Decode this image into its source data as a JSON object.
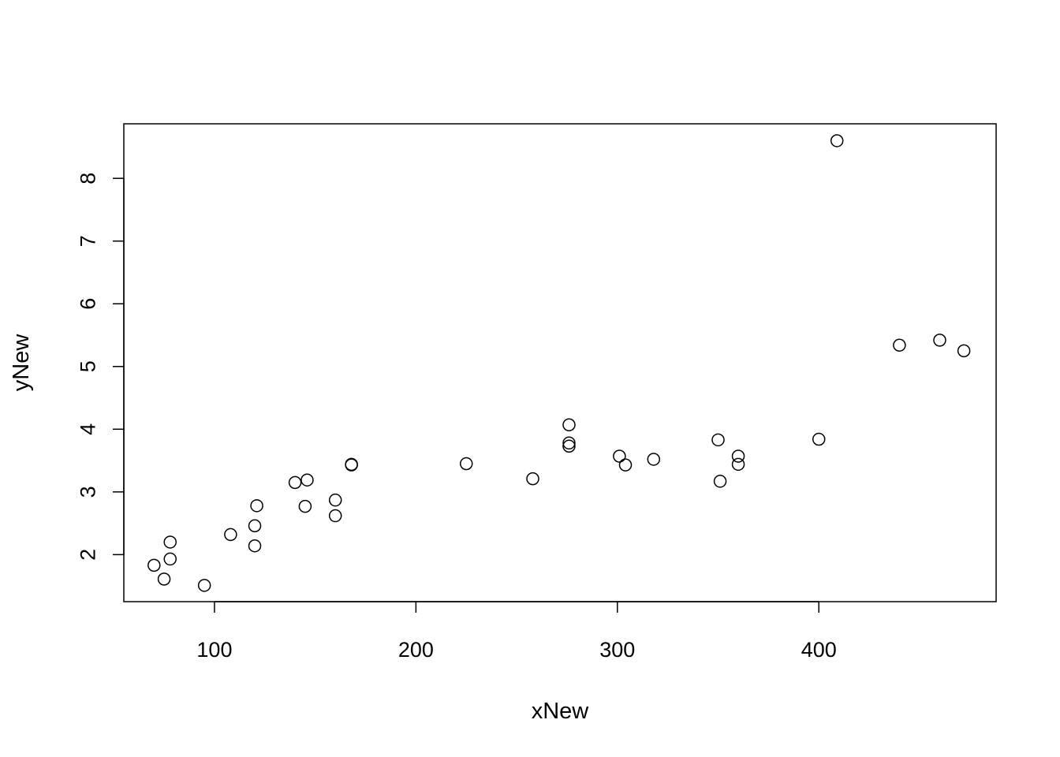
{
  "chart_data": {
    "type": "scatter",
    "title": "",
    "xlabel": "xNew",
    "ylabel": "yNew",
    "xlim": [
      55,
      488
    ],
    "ylim": [
      1.25,
      8.87
    ],
    "xticks": [
      100,
      200,
      300,
      400
    ],
    "yticks": [
      2,
      3,
      4,
      5,
      6,
      7,
      8
    ],
    "xtick_labels": [
      "100",
      "200",
      "300",
      "400"
    ],
    "ytick_labels": [
      "2",
      "3",
      "4",
      "5",
      "6",
      "7",
      "8"
    ],
    "grid": false,
    "legend": "none",
    "marker": "open-circle",
    "point_color": "#000000",
    "points": [
      {
        "x": 70,
        "y": 1.83
      },
      {
        "x": 75,
        "y": 1.61
      },
      {
        "x": 78,
        "y": 1.93
      },
      {
        "x": 78,
        "y": 2.2
      },
      {
        "x": 95,
        "y": 1.51
      },
      {
        "x": 108,
        "y": 2.32
      },
      {
        "x": 120,
        "y": 2.46
      },
      {
        "x": 120,
        "y": 2.14
      },
      {
        "x": 121,
        "y": 2.78
      },
      {
        "x": 140,
        "y": 3.15
      },
      {
        "x": 145,
        "y": 2.77
      },
      {
        "x": 146,
        "y": 3.19
      },
      {
        "x": 160,
        "y": 2.87
      },
      {
        "x": 160,
        "y": 2.62
      },
      {
        "x": 168,
        "y": 3.44
      },
      {
        "x": 168,
        "y": 3.43
      },
      {
        "x": 225,
        "y": 3.45
      },
      {
        "x": 258,
        "y": 3.21
      },
      {
        "x": 276,
        "y": 4.07
      },
      {
        "x": 276,
        "y": 3.78
      },
      {
        "x": 276,
        "y": 3.73
      },
      {
        "x": 301,
        "y": 3.57
      },
      {
        "x": 304,
        "y": 3.43
      },
      {
        "x": 318,
        "y": 3.52
      },
      {
        "x": 350,
        "y": 3.83
      },
      {
        "x": 351,
        "y": 3.17
      },
      {
        "x": 360,
        "y": 3.57
      },
      {
        "x": 360,
        "y": 3.44
      },
      {
        "x": 400,
        "y": 3.84
      },
      {
        "x": 409,
        "y": 8.6
      },
      {
        "x": 440,
        "y": 5.34
      },
      {
        "x": 460,
        "y": 5.42
      },
      {
        "x": 472,
        "y": 5.25
      }
    ]
  }
}
